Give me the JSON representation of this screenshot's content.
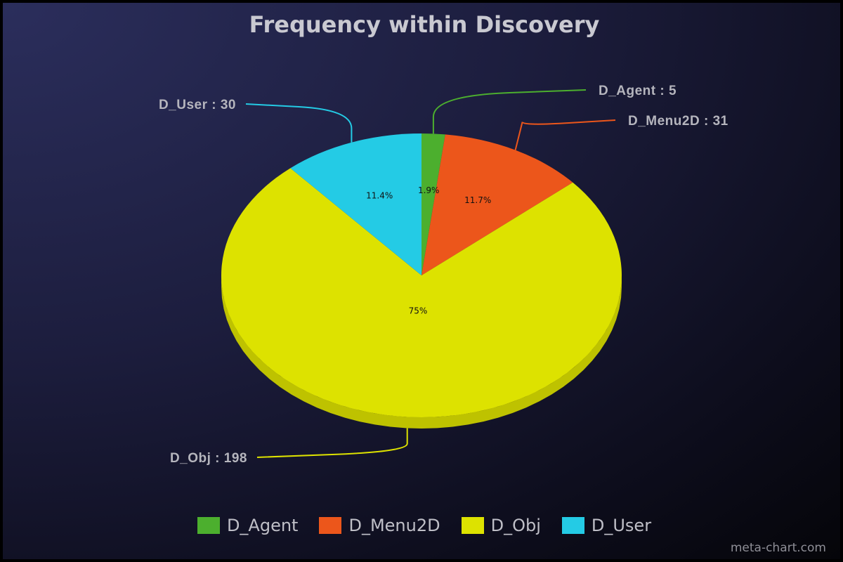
{
  "chart_data": {
    "type": "pie",
    "title": "Frequency within Discovery",
    "slices": [
      {
        "label": "D_Agent",
        "value": 5,
        "percent_label": "1.9%",
        "callout": "D_Agent : 5",
        "color": "#4caf2e"
      },
      {
        "label": "D_Menu2D",
        "value": 31,
        "percent_label": "11.7%",
        "callout": "D_Menu2D : 31",
        "color": "#ec561b"
      },
      {
        "label": "D_Obj",
        "value": 198,
        "percent_label": "75%",
        "callout": "D_Obj : 198",
        "color": "#dde200"
      },
      {
        "label": "D_User",
        "value": 30,
        "percent_label": "11.4%",
        "callout": "D_User : 30",
        "color": "#24cbe5"
      }
    ],
    "legend_placement": "bottom"
  },
  "credit": "meta-chart.com"
}
